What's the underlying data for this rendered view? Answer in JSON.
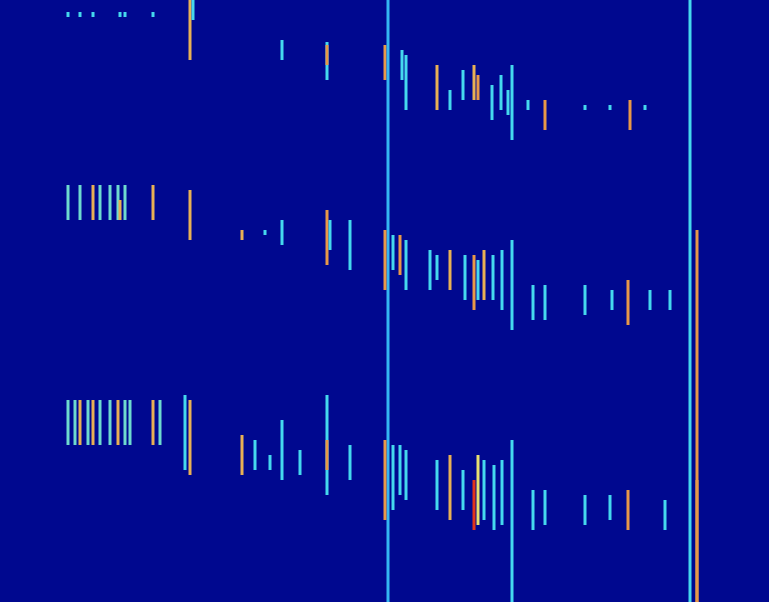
{
  "chart_data": {
    "type": "heatmap",
    "xlim": [
      0,
      769
    ],
    "ylim": [
      0,
      602
    ],
    "tick_labels": false,
    "grid": false,
    "color_range": [
      0,
      1
    ],
    "segments": [
      [
        68,
        12,
        17,
        0.4
      ],
      [
        80,
        12,
        17,
        0.4
      ],
      [
        93,
        12,
        17,
        0.4
      ],
      [
        120,
        12,
        17,
        0.4
      ],
      [
        125,
        12,
        17,
        0.4
      ],
      [
        153,
        12,
        17,
        0.4
      ],
      [
        190,
        0,
        60,
        0.7
      ],
      [
        193,
        0,
        20,
        0.4
      ],
      [
        282,
        40,
        60,
        0.4
      ],
      [
        327,
        42,
        80,
        0.4
      ],
      [
        327,
        45,
        65,
        0.75
      ],
      [
        385,
        45,
        80,
        0.75
      ],
      [
        388,
        0,
        602,
        0.35
      ],
      [
        402,
        50,
        80,
        0.4
      ],
      [
        406,
        55,
        110,
        0.4
      ],
      [
        437,
        65,
        110,
        0.7
      ],
      [
        450,
        90,
        110,
        0.4
      ],
      [
        463,
        70,
        100,
        0.4
      ],
      [
        474,
        65,
        100,
        0.7
      ],
      [
        478,
        75,
        100,
        0.75
      ],
      [
        492,
        85,
        120,
        0.4
      ],
      [
        501,
        75,
        110,
        0.4
      ],
      [
        508,
        90,
        115,
        0.4
      ],
      [
        512,
        65,
        140,
        0.4
      ],
      [
        528,
        100,
        110,
        0.4
      ],
      [
        545,
        100,
        130,
        0.75
      ],
      [
        585,
        105,
        110,
        0.4
      ],
      [
        610,
        105,
        110,
        0.4
      ],
      [
        630,
        100,
        130,
        0.75
      ],
      [
        645,
        105,
        110,
        0.4
      ],
      [
        690,
        0,
        602,
        0.4
      ],
      [
        697,
        230,
        602,
        0.75
      ],
      [
        68,
        185,
        220,
        0.45
      ],
      [
        80,
        185,
        220,
        0.45
      ],
      [
        93,
        185,
        220,
        0.7
      ],
      [
        100,
        185,
        220,
        0.45
      ],
      [
        110,
        185,
        220,
        0.45
      ],
      [
        118,
        185,
        220,
        0.45
      ],
      [
        120,
        200,
        220,
        0.7
      ],
      [
        125,
        185,
        220,
        0.45
      ],
      [
        153,
        185,
        220,
        0.7
      ],
      [
        190,
        190,
        240,
        0.7
      ],
      [
        242,
        230,
        240,
        0.7
      ],
      [
        265,
        230,
        235,
        0.4
      ],
      [
        282,
        220,
        245,
        0.4
      ],
      [
        327,
        210,
        265,
        0.75
      ],
      [
        330,
        220,
        250,
        0.4
      ],
      [
        350,
        220,
        270,
        0.4
      ],
      [
        385,
        230,
        290,
        0.75
      ],
      [
        393,
        235,
        270,
        0.4
      ],
      [
        400,
        235,
        275,
        0.75
      ],
      [
        406,
        240,
        290,
        0.4
      ],
      [
        430,
        250,
        290,
        0.4
      ],
      [
        437,
        255,
        280,
        0.4
      ],
      [
        450,
        250,
        290,
        0.7
      ],
      [
        465,
        255,
        300,
        0.4
      ],
      [
        474,
        255,
        310,
        0.75
      ],
      [
        478,
        260,
        300,
        0.4
      ],
      [
        484,
        250,
        300,
        0.7
      ],
      [
        493,
        255,
        300,
        0.4
      ],
      [
        502,
        250,
        310,
        0.4
      ],
      [
        512,
        240,
        330,
        0.4
      ],
      [
        533,
        285,
        320,
        0.4
      ],
      [
        545,
        285,
        320,
        0.4
      ],
      [
        585,
        285,
        315,
        0.4
      ],
      [
        612,
        290,
        310,
        0.4
      ],
      [
        628,
        280,
        325,
        0.75
      ],
      [
        650,
        290,
        310,
        0.4
      ],
      [
        670,
        290,
        310,
        0.4
      ],
      [
        68,
        400,
        445,
        0.45
      ],
      [
        75,
        400,
        445,
        0.45
      ],
      [
        80,
        400,
        445,
        0.7
      ],
      [
        88,
        400,
        445,
        0.45
      ],
      [
        93,
        400,
        445,
        0.7
      ],
      [
        100,
        400,
        445,
        0.45
      ],
      [
        110,
        400,
        445,
        0.45
      ],
      [
        118,
        400,
        445,
        0.7
      ],
      [
        125,
        400,
        445,
        0.45
      ],
      [
        130,
        400,
        445,
        0.45
      ],
      [
        153,
        400,
        445,
        0.7
      ],
      [
        160,
        400,
        445,
        0.45
      ],
      [
        185,
        395,
        470,
        0.4
      ],
      [
        190,
        400,
        475,
        0.7
      ],
      [
        242,
        435,
        475,
        0.7
      ],
      [
        255,
        440,
        470,
        0.4
      ],
      [
        270,
        455,
        470,
        0.4
      ],
      [
        282,
        420,
        480,
        0.4
      ],
      [
        300,
        450,
        475,
        0.4
      ],
      [
        327,
        395,
        495,
        0.4
      ],
      [
        327,
        440,
        470,
        0.75
      ],
      [
        350,
        445,
        480,
        0.4
      ],
      [
        385,
        440,
        520,
        0.75
      ],
      [
        393,
        445,
        510,
        0.4
      ],
      [
        400,
        445,
        495,
        0.4
      ],
      [
        406,
        450,
        500,
        0.4
      ],
      [
        437,
        460,
        510,
        0.4
      ],
      [
        450,
        455,
        520,
        0.7
      ],
      [
        463,
        470,
        510,
        0.4
      ],
      [
        474,
        480,
        530,
        0.95
      ],
      [
        478,
        455,
        525,
        0.6
      ],
      [
        484,
        460,
        520,
        0.4
      ],
      [
        494,
        465,
        530,
        0.4
      ],
      [
        502,
        460,
        525,
        0.4
      ],
      [
        512,
        440,
        602,
        0.4
      ],
      [
        533,
        490,
        530,
        0.4
      ],
      [
        545,
        490,
        525,
        0.4
      ],
      [
        585,
        495,
        525,
        0.4
      ],
      [
        610,
        495,
        520,
        0.4
      ],
      [
        628,
        490,
        530,
        0.75
      ],
      [
        665,
        500,
        530,
        0.4
      ],
      [
        697,
        480,
        602,
        0.75
      ]
    ]
  }
}
